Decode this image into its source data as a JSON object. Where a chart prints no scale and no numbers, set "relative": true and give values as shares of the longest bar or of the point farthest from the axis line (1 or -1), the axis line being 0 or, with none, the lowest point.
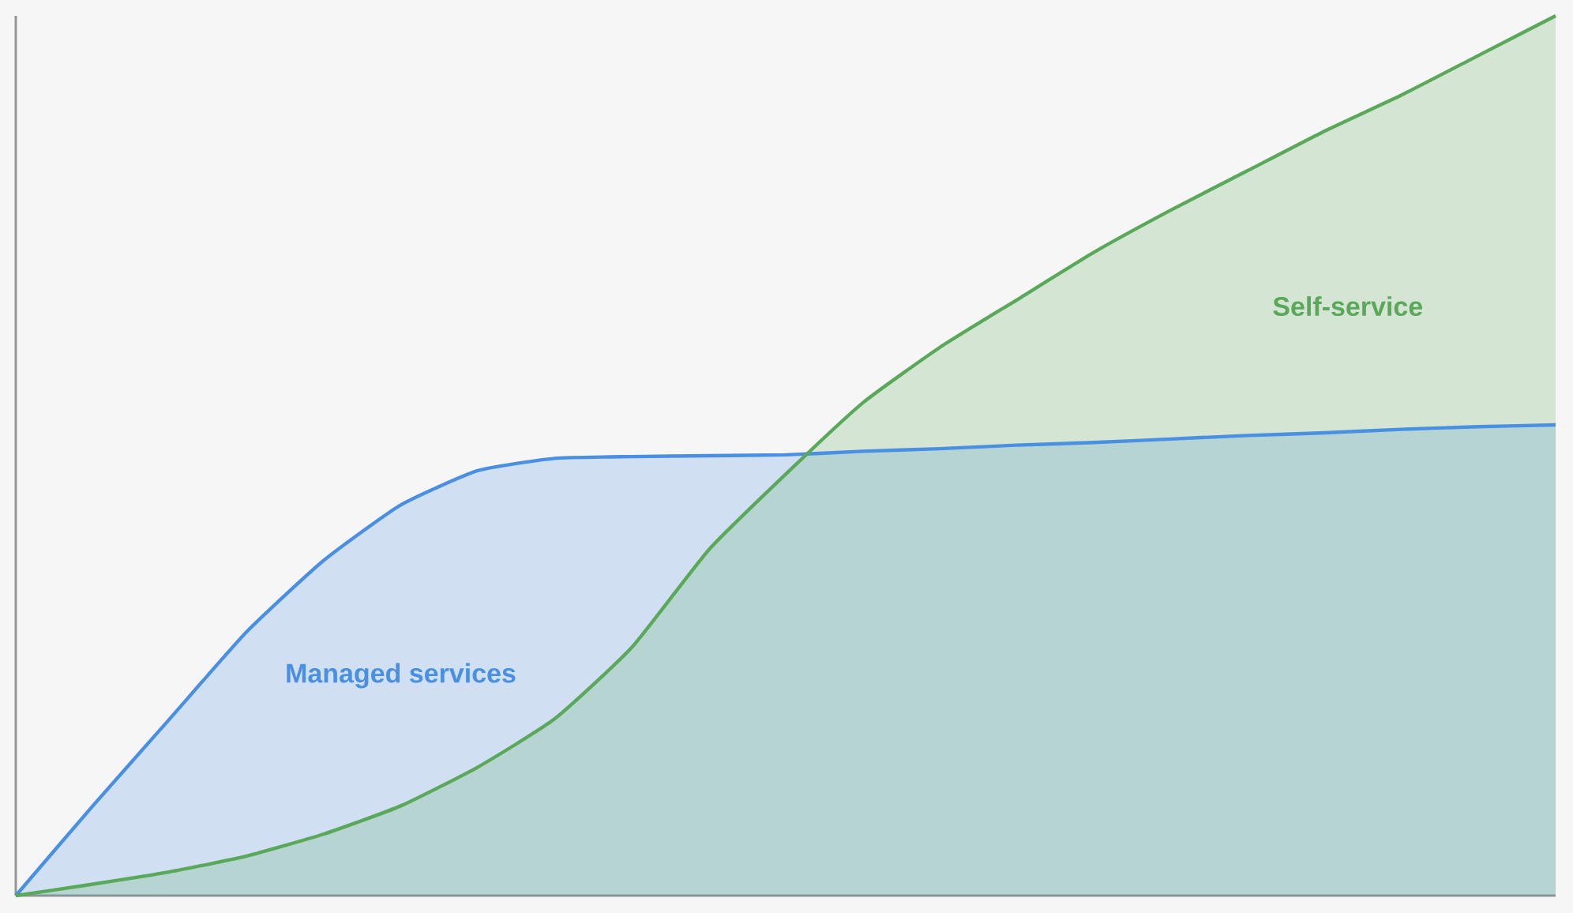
{
  "chart_data": {
    "type": "area",
    "relative": true,
    "categories": [
      null,
      null,
      null,
      null,
      null,
      null,
      null,
      null,
      null,
      null,
      null,
      null,
      null,
      null,
      null,
      null,
      null,
      null,
      null,
      null,
      null
    ],
    "series": [
      {
        "name": "Managed services",
        "color": "#4a90e2",
        "values": [
          0,
          0.102,
          0.201,
          0.3,
          0.381,
          0.444,
          0.483,
          0.497,
          0.499,
          0.5,
          0.501,
          0.505,
          0.508,
          0.512,
          0.515,
          0.519,
          0.523,
          0.526,
          0.53,
          0.533,
          0.535
        ]
      },
      {
        "name": "Self-service",
        "color": "#5aa85a",
        "values": [
          0,
          0.013,
          0.027,
          0.045,
          0.07,
          0.102,
          0.146,
          0.201,
          0.282,
          0.393,
          0.479,
          0.56,
          0.623,
          0.677,
          0.731,
          0.779,
          0.824,
          0.869,
          0.91,
          0.955,
          1
        ]
      }
    ]
  }
}
